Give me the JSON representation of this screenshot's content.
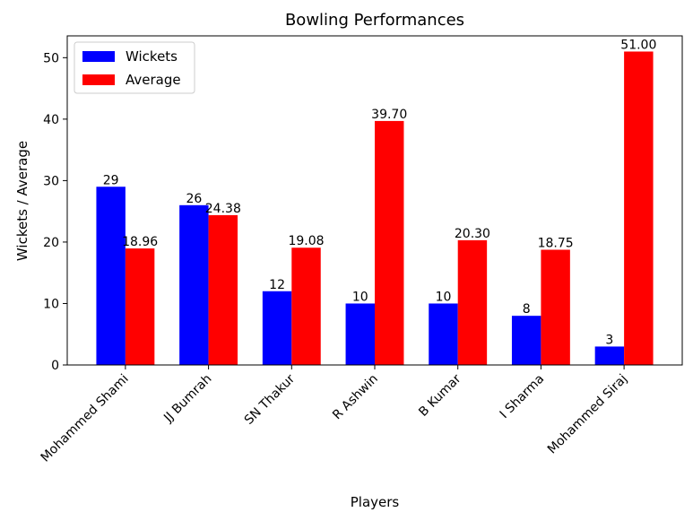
{
  "chart_data": {
    "type": "bar",
    "title": "Bowling Performances",
    "xlabel": "Players",
    "ylabel": "Wickets / Average",
    "categories": [
      "Mohammed Shami",
      "JJ Bumrah",
      "SN Thakur",
      "R Ashwin",
      "B Kumar",
      "I Sharma",
      "Mohammed Siraj"
    ],
    "series": [
      {
        "name": "Wickets",
        "color": "#0000ff",
        "values": [
          29,
          26,
          12,
          10,
          10,
          8,
          3
        ],
        "labels": [
          "29",
          "26",
          "12",
          "10",
          "10",
          "8",
          "3"
        ]
      },
      {
        "name": "Average",
        "color": "#ff0000",
        "values": [
          18.96,
          24.38,
          19.08,
          39.7,
          20.3,
          18.75,
          51.0
        ],
        "labels": [
          "18.96",
          "24.38",
          "19.08",
          "39.70",
          "20.30",
          "18.75",
          "51.00"
        ]
      }
    ],
    "ylim": [
      0,
      53.55
    ],
    "yticks": [
      0,
      10,
      20,
      30,
      40,
      50
    ],
    "ytick_labels": [
      "0",
      "10",
      "20",
      "30",
      "40",
      "50"
    ],
    "legend_position": "top-left",
    "grid": false
  }
}
